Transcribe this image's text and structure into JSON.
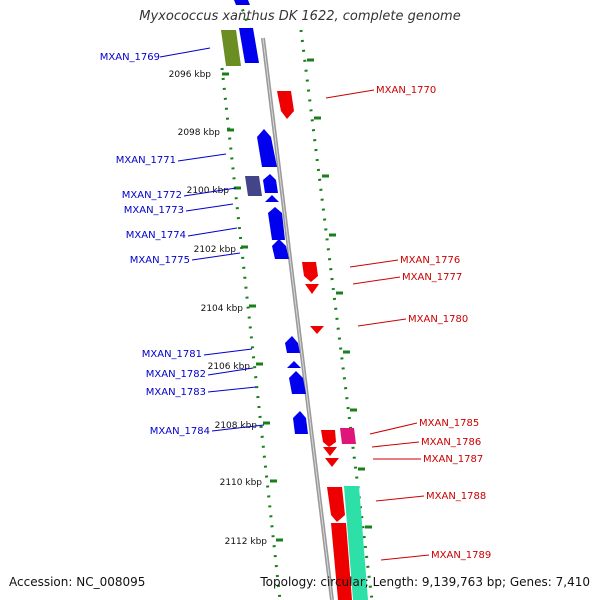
{
  "title": "Myxococcus xanthus DK 1622, complete genome",
  "accession": "Accession: NC_008095",
  "topology": "Topology: circular; Length: 9,139,763 bp; Genes: 7,410",
  "colors": {
    "forward": "#0000ee",
    "reverse": "#ee0000",
    "axis": "#999999",
    "dots": "#1a7f1a"
  },
  "kbp_ticks": [
    "2096 kbp",
    "2098 kbp",
    "2100 kbp",
    "2102 kbp",
    "2104 kbp",
    "2106 kbp",
    "2108 kbp",
    "2110 kbp",
    "2112 kbp"
  ],
  "genes_left": [
    "MXAN_1769",
    "MXAN_1771",
    "MXAN_1772",
    "MXAN_1773",
    "MXAN_1774",
    "MXAN_1775",
    "MXAN_1781",
    "MXAN_1782",
    "MXAN_1783",
    "MXAN_1784"
  ],
  "genes_right": [
    "MXAN_1770",
    "MXAN_1776",
    "MXAN_1777",
    "MXAN_1780",
    "MXAN_1785",
    "MXAN_1786",
    "MXAN_1787",
    "MXAN_1788",
    "MXAN_1789"
  ]
}
